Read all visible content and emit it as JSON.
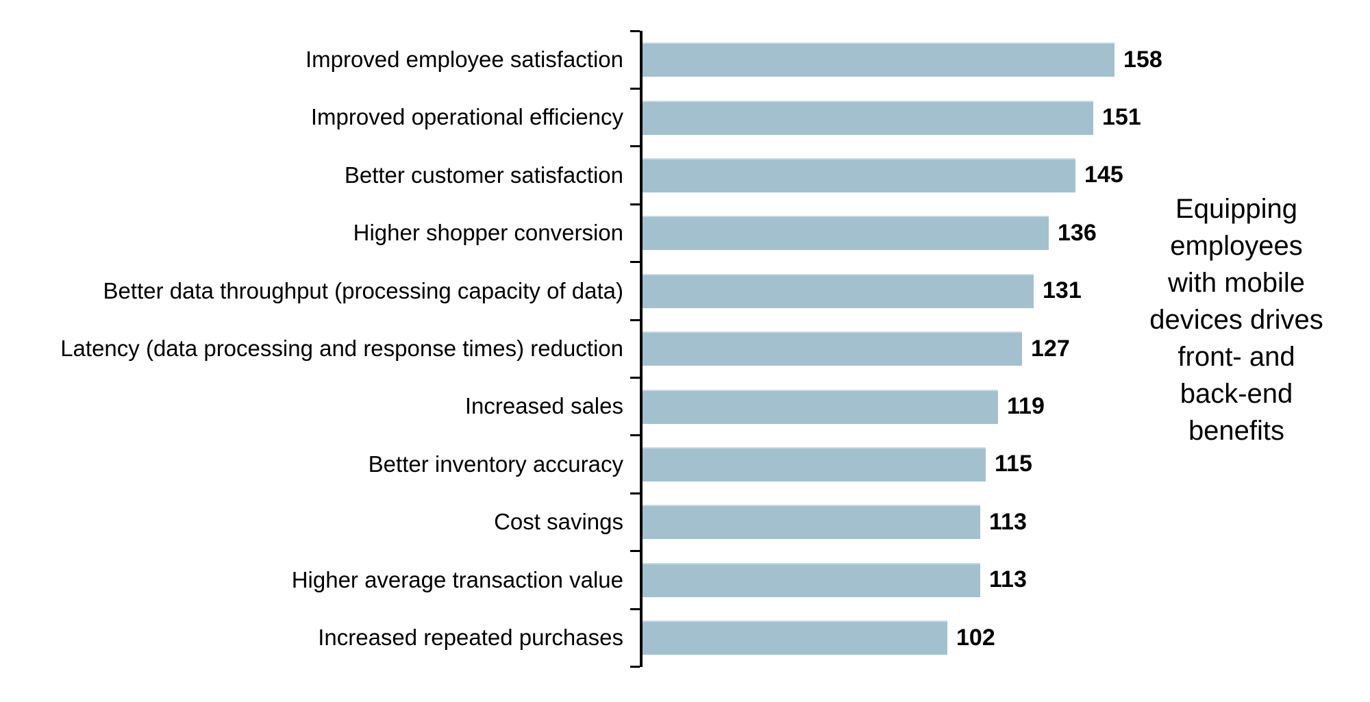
{
  "chart_data": {
    "type": "bar",
    "orientation": "horizontal",
    "title": "",
    "xlabel": "",
    "ylabel": "",
    "grid": false,
    "legend": "none",
    "value_axis_visible": false,
    "data_labels": "end-of-bar",
    "bar_color": "#a3c0cf",
    "axis_color": "#000000",
    "categories": [
      "Improved employee satisfaction",
      "Improved operational efficiency",
      "Better customer satisfaction",
      "Higher shopper conversion",
      "Better data throughput (processing capacity of data)",
      "Latency (data processing and response times) reduction",
      "Increased sales",
      "Better inventory accuracy",
      "Cost savings",
      "Higher average transaction value",
      "Increased repeated purchases"
    ],
    "values": [
      158,
      151,
      145,
      136,
      131,
      127,
      119,
      115,
      113,
      113,
      102
    ],
    "annotation": {
      "text": "Equipping employees with mobile devices drives front- and back-end benefits",
      "lines": [
        "Equipping",
        "employees",
        "with mobile",
        "devices drives",
        "front- and",
        "back-end",
        "benefits"
      ],
      "position": "right-center"
    }
  }
}
